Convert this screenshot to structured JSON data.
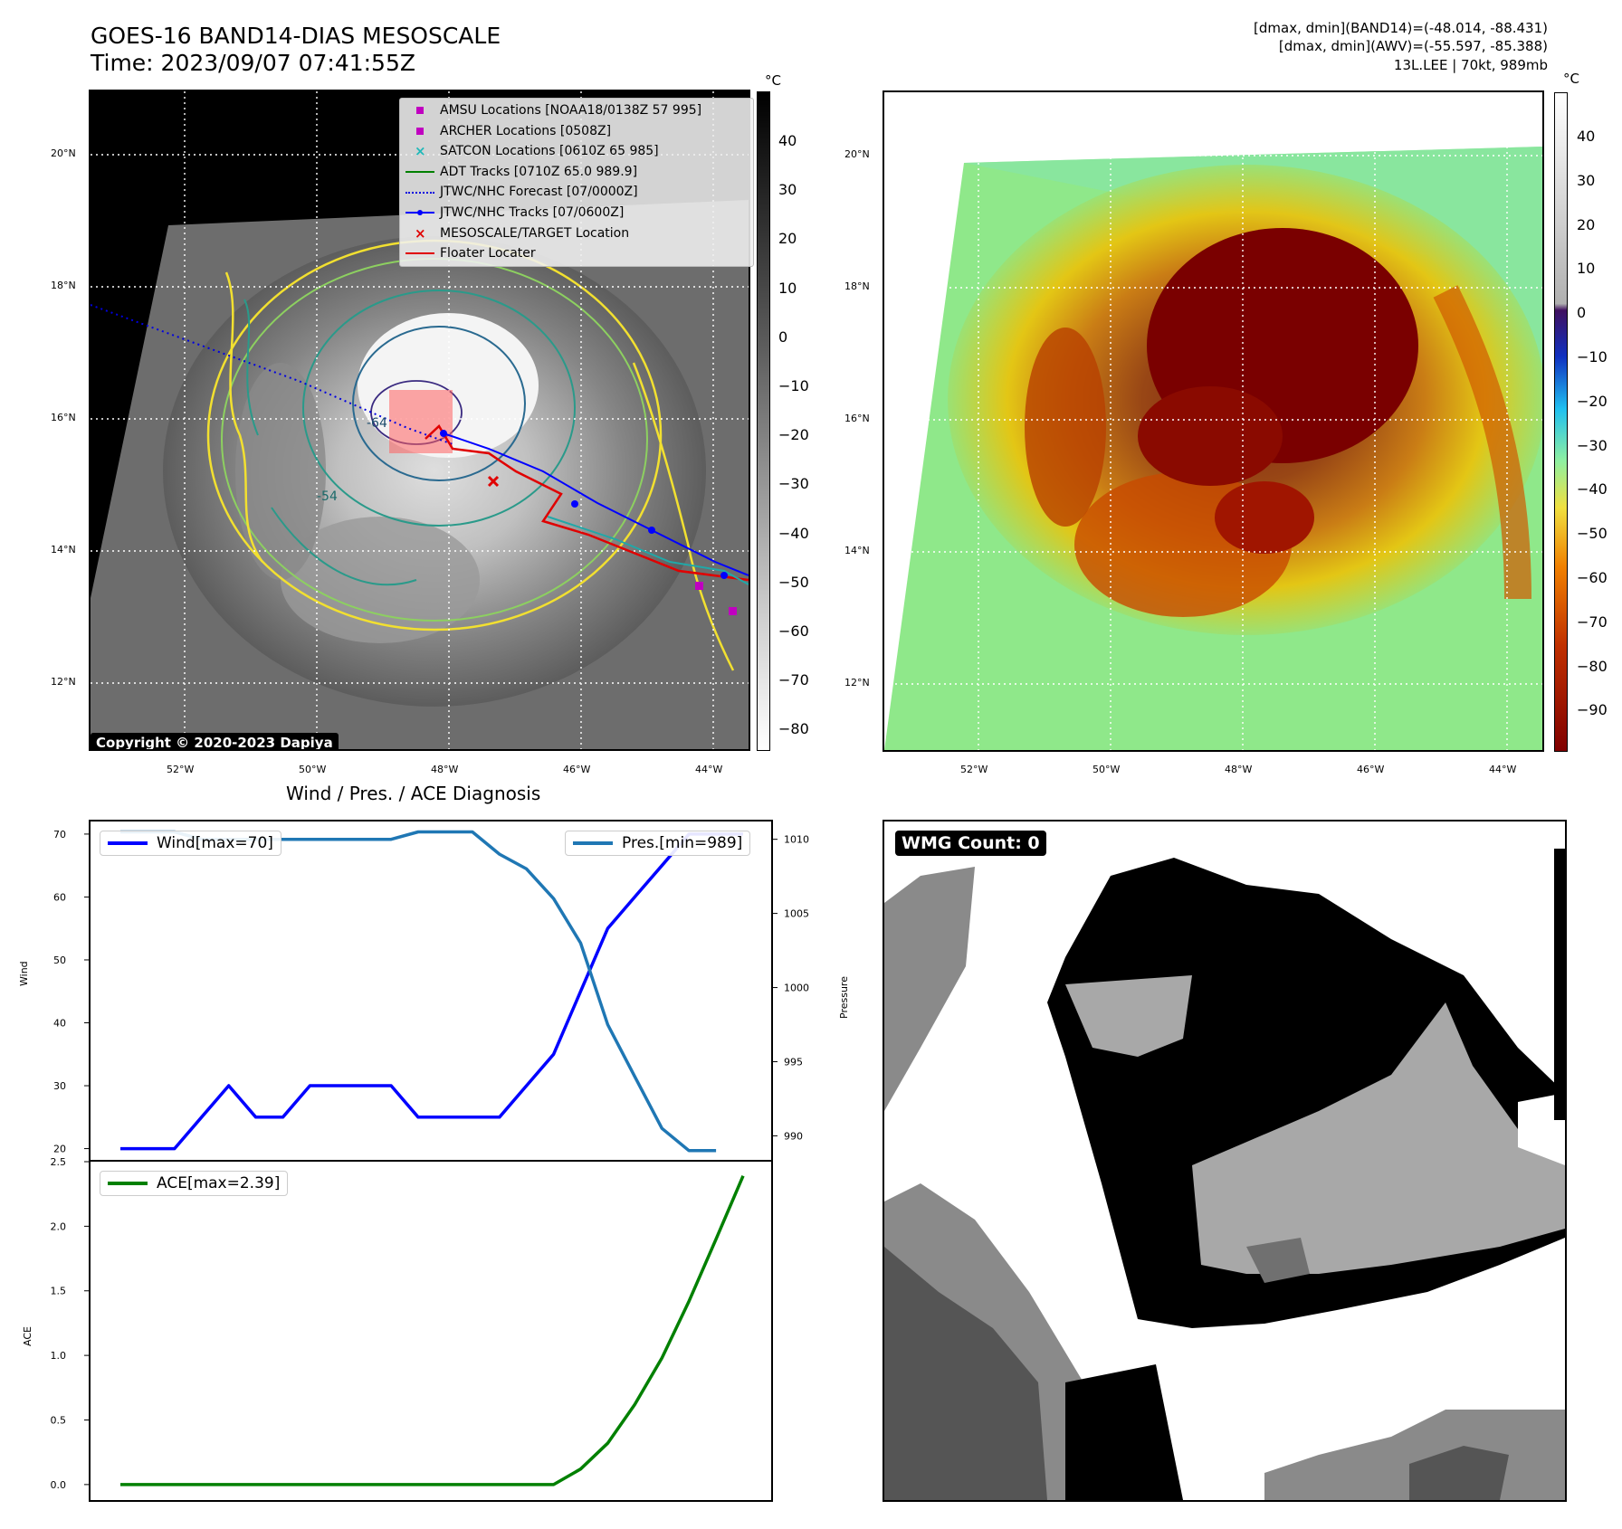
{
  "header": {
    "title_line1": "GOES-16 BAND14-DIAS MESOSCALE",
    "title_line2": "Time: 2023/09/07 07:41:55Z",
    "stat_line1": "[dmax, dmin](BAND14)=(-48.014, -88.431)",
    "stat_line2": "[dmax, dmin](AWV)=(-55.597, -85.388)",
    "stat_line3": "13L.LEE | 70kt, 989mb"
  },
  "map": {
    "lat_labels": [
      "20°N",
      "18°N",
      "16°N",
      "14°N",
      "12°N"
    ],
    "lon_labels": [
      "52°W",
      "50°W",
      "48°W",
      "46°W",
      "44°W"
    ],
    "copyright": "Copyright © 2020-2023 Dapiya",
    "legend": [
      {
        "label": "AMSU Locations [NOAA18/0138Z 57 995]",
        "symbol": "square",
        "color": "#c000c0"
      },
      {
        "label": "ARCHER Locations [0508Z]",
        "symbol": "square",
        "color": "#c000c0"
      },
      {
        "label": "SATCON Locations [0610Z 65 985]",
        "symbol": "x",
        "color": "#20b8b8"
      },
      {
        "label": "ADT Tracks [0710Z 65.0 989.9]",
        "symbol": "line",
        "color": "#008000"
      },
      {
        "label": "JTWC/NHC Forecast [07/0000Z]",
        "symbol": "dotted",
        "color": "#0000e0"
      },
      {
        "label": "JTWC/NHC Tracks [07/0600Z]",
        "symbol": "line-dot",
        "color": "#0000ff"
      },
      {
        "label": "MESOSCALE/TARGET Location",
        "symbol": "x",
        "color": "#e00000"
      },
      {
        "label": "Floater Locater",
        "symbol": "line",
        "color": "#e00000"
      }
    ],
    "contour_label_1": "-54",
    "contour_label_2": "-64"
  },
  "colorbar_left": {
    "unit": "°C",
    "ticks": [
      "40",
      "30",
      "20",
      "10",
      "0",
      "−10",
      "−20",
      "−30",
      "−40",
      "−50",
      "−60",
      "−70",
      "−80"
    ]
  },
  "colorbar_right": {
    "unit": "°C",
    "ticks": [
      "40",
      "30",
      "20",
      "10",
      "0",
      "−10",
      "−20",
      "−30",
      "−40",
      "−50",
      "−60",
      "−70",
      "−80",
      "−90"
    ]
  },
  "diagnosis": {
    "title": "Wind / Pres. / ACE Diagnosis",
    "wind_axis_title": "Wind",
    "pres_axis_title": "Pressure",
    "ace_axis_title": "ACE",
    "wind_legend": "Wind[max=70]",
    "pres_legend": "Pres.[min=989]",
    "ace_legend": "ACE[max=2.39]"
  },
  "wmg": {
    "badge": "WMG Count: 0"
  },
  "chart_data": [
    {
      "type": "line",
      "title": "Wind / Pres. / ACE Diagnosis",
      "ylabel": "Wind",
      "y2label": "Pressure",
      "ylim": [
        18.5,
        72
      ],
      "y2lim": [
        988.5,
        1011.2
      ],
      "yticks": [
        20,
        30,
        40,
        50,
        60,
        70
      ],
      "y2ticks": [
        990,
        995,
        1000,
        1005,
        1010
      ],
      "series": [
        {
          "name": "Wind[max=70]",
          "color": "#0000ff",
          "axis": "left",
          "values": [
            20,
            20,
            20,
            25,
            30,
            25,
            25,
            30,
            30,
            30,
            30,
            25,
            25,
            25,
            25,
            30,
            35,
            45,
            55,
            60,
            65,
            70,
            70,
            70
          ]
        },
        {
          "name": "Pres.[min=989]",
          "color": "#1f77b4",
          "axis": "right",
          "values": [
            1010.5,
            1010.5,
            1010.5,
            1010,
            1010,
            1010,
            1010,
            1010,
            1010,
            1010,
            1010,
            1010.5,
            1010.5,
            1010.5,
            1009,
            1008,
            1006,
            1003,
            997.5,
            994,
            990.5,
            989,
            989,
            null
          ]
        }
      ]
    },
    {
      "type": "line",
      "ylabel": "ACE",
      "ylim": [
        -0.12,
        2.5
      ],
      "yticks": [
        0.0,
        0.5,
        1.0,
        1.5,
        2.0,
        2.5
      ],
      "series": [
        {
          "name": "ACE[max=2.39]",
          "color": "#008000",
          "values": [
            0,
            0,
            0,
            0,
            0,
            0,
            0,
            0,
            0,
            0,
            0,
            0,
            0,
            0,
            0,
            0,
            0,
            0.12,
            0.32,
            0.62,
            0.98,
            1.42,
            1.9,
            2.39
          ]
        }
      ]
    }
  ]
}
